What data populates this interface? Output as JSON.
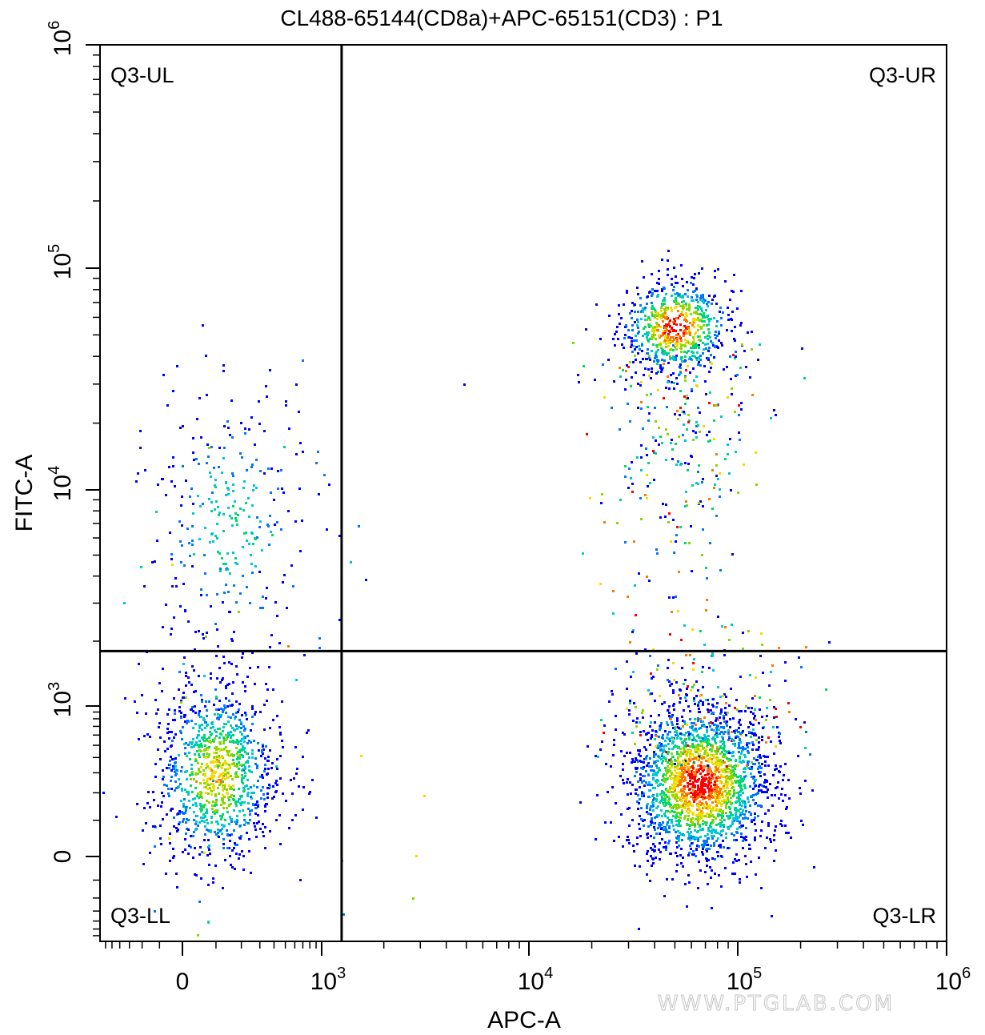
{
  "chart_data": {
    "type": "scatter",
    "title": "CL488-65144(CD8a)+APC-65151(CD3) : P1",
    "xlabel": "APC-A",
    "ylabel": "FITC-A",
    "x_scale": "biexponential",
    "y_scale": "biexponential",
    "xlim": [
      -700,
      1000000
    ],
    "ylim": [
      -700,
      1000000
    ],
    "x_ticks": [
      {
        "value": 0,
        "base": "0",
        "exp": ""
      },
      {
        "value": 1000,
        "base": "10",
        "exp": "3"
      },
      {
        "value": 10000,
        "base": "10",
        "exp": "4"
      },
      {
        "value": 100000,
        "base": "10",
        "exp": "5"
      },
      {
        "value": 1000000,
        "base": "10",
        "exp": "6"
      }
    ],
    "y_ticks": [
      {
        "value": 0,
        "base": "0",
        "exp": ""
      },
      {
        "value": 1000,
        "base": "10",
        "exp": "3"
      },
      {
        "value": 10000,
        "base": "10",
        "exp": "4"
      },
      {
        "value": 100000,
        "base": "10",
        "exp": "5"
      },
      {
        "value": 1000000,
        "base": "10",
        "exp": "6"
      }
    ],
    "gate": {
      "x": 1250,
      "y": 1800
    },
    "quadrants": [
      {
        "name": "Q3-UL",
        "pos": "upper-left"
      },
      {
        "name": "Q3-UR",
        "pos": "upper-right"
      },
      {
        "name": "Q3-LL",
        "pos": "lower-left"
      },
      {
        "name": "Q3-LR",
        "pos": "lower-right"
      }
    ],
    "populations": [
      {
        "quadrant": "Q3-LL",
        "center": [
          100,
          300
        ],
        "approx_events": 1100,
        "density": "medium"
      },
      {
        "quadrant": "Q3-UL",
        "center": [
          150,
          7000
        ],
        "approx_events": 320,
        "density": "low"
      },
      {
        "quadrant": "Q3-UR",
        "center": [
          50000,
          55000
        ],
        "approx_events": 1000,
        "density": "high"
      },
      {
        "quadrant": "Q3-LR",
        "center": [
          65000,
          250
        ],
        "approx_events": 2300,
        "density": "high"
      }
    ],
    "density_colors": [
      "#0000ff",
      "#0077ff",
      "#00c8d2",
      "#00d870",
      "#8ad700",
      "#f0dc00",
      "#ff7800",
      "#ff0000"
    ],
    "grid": false,
    "legend": "none"
  },
  "watermark": "WWW.PTGLAB.COM"
}
